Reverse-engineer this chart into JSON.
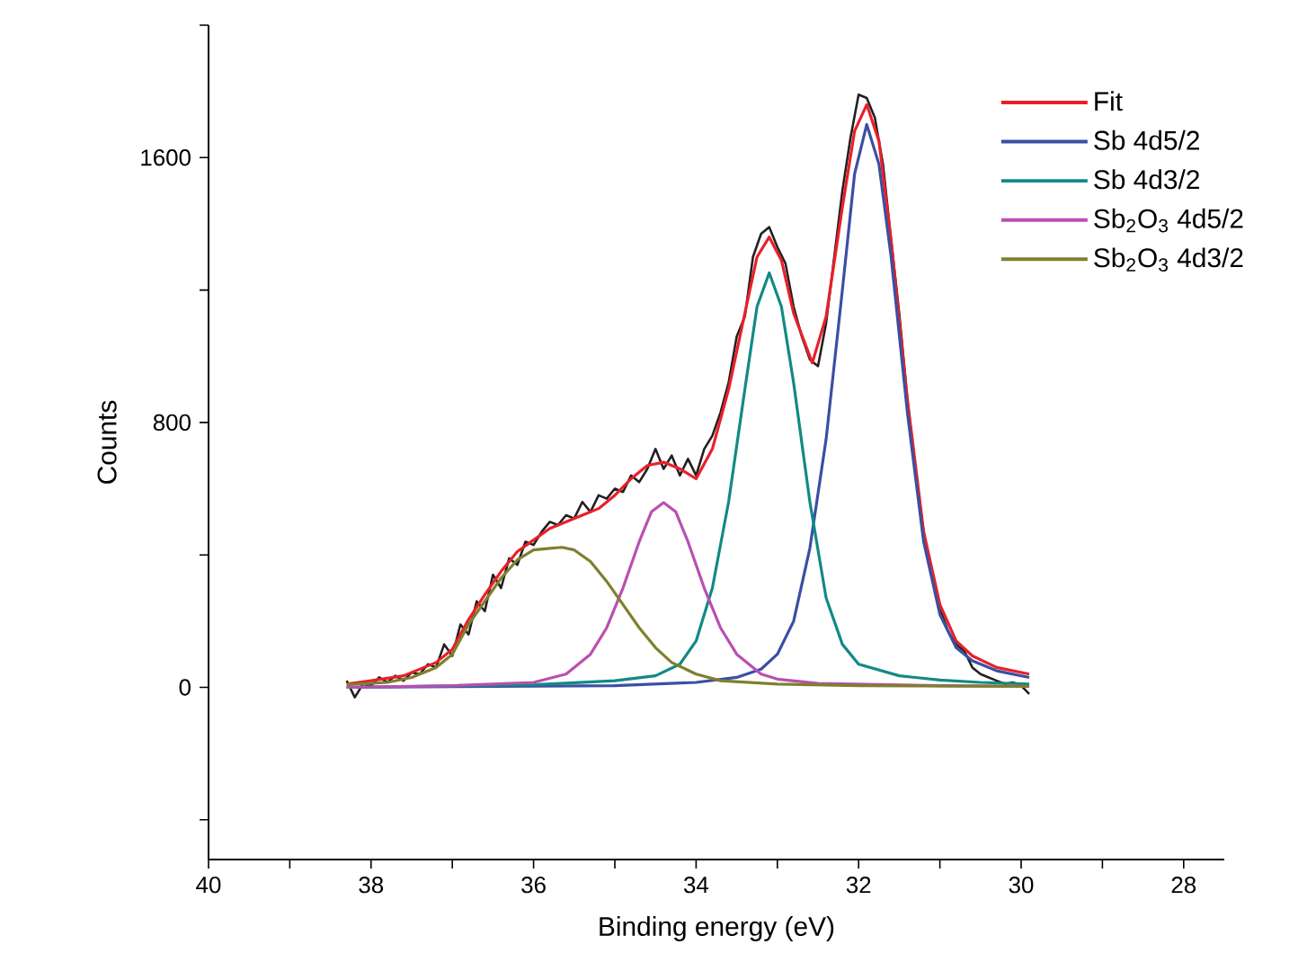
{
  "chart_data": {
    "type": "line",
    "xlabel": "Binding energy (eV)",
    "ylabel": "Counts",
    "xlim": [
      40,
      27.5
    ],
    "ylim": [
      -520,
      2000
    ],
    "xticks": [
      40,
      {
        "value": 39,
        "label": null
      },
      38,
      {
        "value": 37,
        "label": null
      },
      36,
      {
        "value": 35,
        "label": null
      },
      34,
      {
        "value": 33,
        "label": null
      },
      32,
      {
        "value": 31,
        "label": null
      },
      30,
      {
        "value": 29,
        "label": null
      },
      28
    ],
    "yticks": [
      {
        "value": -400,
        "label": null
      },
      0,
      {
        "value": 400,
        "label": null
      },
      800,
      {
        "value": 1200,
        "label": null
      },
      1600,
      {
        "value": 2000,
        "label": null
      }
    ],
    "legend": "top right",
    "marker": "none",
    "line_style": "solid",
    "series": [
      {
        "color": "#231f20",
        "x": [
          38.3,
          38.2,
          38.1,
          38.0,
          37.9,
          37.8,
          37.7,
          37.6,
          37.5,
          37.4,
          37.3,
          37.2,
          37.1,
          37.0,
          36.9,
          36.8,
          36.7,
          36.6,
          36.5,
          36.4,
          36.3,
          36.2,
          36.1,
          36.0,
          35.9,
          35.8,
          35.7,
          35.6,
          35.5,
          35.4,
          35.3,
          35.2,
          35.1,
          35.0,
          34.9,
          34.8,
          34.7,
          34.6,
          34.5,
          34.4,
          34.3,
          34.2,
          34.1,
          34.0,
          33.9,
          33.8,
          33.7,
          33.6,
          33.5,
          33.4,
          33.3,
          33.2,
          33.1,
          33.0,
          32.9,
          32.8,
          32.7,
          32.6,
          32.5,
          32.4,
          32.3,
          32.2,
          32.1,
          32.0,
          31.9,
          31.8,
          31.7,
          31.6,
          31.5,
          31.4,
          31.3,
          31.2,
          31.1,
          31.0,
          30.9,
          30.8,
          30.7,
          30.6,
          30.5,
          30.4,
          30.3,
          30.2,
          30.1,
          30.0,
          29.9
        ],
        "values": [
          20,
          -30,
          10,
          5,
          30,
          15,
          35,
          20,
          45,
          40,
          70,
          60,
          130,
          95,
          190,
          160,
          260,
          230,
          340,
          300,
          390,
          370,
          440,
          430,
          470,
          500,
          490,
          520,
          510,
          560,
          530,
          580,
          570,
          600,
          590,
          640,
          620,
          660,
          720,
          660,
          700,
          640,
          690,
          640,
          720,
          760,
          830,
          920,
          1060,
          1120,
          1300,
          1370,
          1390,
          1330,
          1280,
          1150,
          1060,
          990,
          970,
          1100,
          1300,
          1500,
          1660,
          1790,
          1780,
          1720,
          1580,
          1350,
          1130,
          870,
          650,
          470,
          340,
          240,
          170,
          130,
          110,
          60,
          40,
          30,
          20,
          10,
          15,
          5,
          -20
        ]
      },
      {
        "name": "Fit",
        "color": "#e8202a",
        "x": [
          38.3,
          38.0,
          37.6,
          37.2,
          37.0,
          36.8,
          36.6,
          36.4,
          36.2,
          36.0,
          35.8,
          35.6,
          35.4,
          35.2,
          35.0,
          34.8,
          34.6,
          34.4,
          34.2,
          34.0,
          33.8,
          33.6,
          33.4,
          33.25,
          33.1,
          32.95,
          32.8,
          32.57,
          32.4,
          32.2,
          32.05,
          31.9,
          31.75,
          31.6,
          31.4,
          31.2,
          31.0,
          30.8,
          30.6,
          30.3,
          29.9
        ],
        "values": [
          10,
          20,
          35,
          75,
          115,
          205,
          280,
          350,
          410,
          445,
          480,
          500,
          520,
          540,
          580,
          630,
          670,
          680,
          660,
          630,
          720,
          900,
          1130,
          1300,
          1360,
          1290,
          1130,
          980,
          1120,
          1450,
          1680,
          1760,
          1650,
          1350,
          870,
          470,
          250,
          140,
          95,
          60,
          40
        ]
      },
      {
        "name": "Sb 4d5/2",
        "color": "#3a4fa3",
        "x": [
          38.3,
          35.0,
          34.0,
          33.5,
          33.2,
          33.0,
          32.8,
          32.6,
          32.4,
          32.2,
          32.05,
          31.9,
          31.75,
          31.6,
          31.4,
          31.2,
          31.0,
          30.8,
          30.6,
          30.3,
          29.9
        ],
        "values": [
          0,
          5,
          15,
          30,
          55,
          100,
          200,
          420,
          750,
          1200,
          1550,
          1700,
          1580,
          1300,
          830,
          440,
          220,
          120,
          80,
          50,
          30
        ]
      },
      {
        "name": "Sb 4d3/2",
        "color": "#128a84",
        "x": [
          38.3,
          36.0,
          35.0,
          34.5,
          34.2,
          34.0,
          33.8,
          33.6,
          33.4,
          33.25,
          33.1,
          32.95,
          32.8,
          32.6,
          32.4,
          32.2,
          32.0,
          31.5,
          31.0,
          30.5,
          29.9
        ],
        "values": [
          0,
          8,
          20,
          35,
          70,
          140,
          300,
          560,
          900,
          1150,
          1252,
          1150,
          920,
          560,
          270,
          130,
          70,
          35,
          22,
          15,
          10
        ]
      },
      {
        "name": "Sb$_{2}$O$_{3}$ 4d5/2",
        "color": "#b94fb0",
        "x": [
          38.3,
          37.0,
          36.0,
          35.6,
          35.3,
          35.1,
          34.9,
          34.7,
          34.55,
          34.4,
          34.25,
          34.1,
          33.9,
          33.7,
          33.5,
          33.2,
          33.0,
          32.5,
          31.0,
          29.9
        ],
        "values": [
          0,
          5,
          15,
          40,
          100,
          180,
          300,
          440,
          530,
          558,
          530,
          440,
          300,
          180,
          100,
          40,
          25,
          12,
          5,
          3
        ]
      },
      {
        "name": "Sb$_{2}$O$_{3}$ 4d3/2",
        "color": "#7f7f2e",
        "x": [
          38.3,
          37.8,
          37.5,
          37.2,
          37.0,
          36.8,
          36.6,
          36.4,
          36.2,
          36.0,
          35.8,
          35.65,
          35.5,
          35.3,
          35.1,
          34.9,
          34.7,
          34.5,
          34.3,
          34.0,
          33.7,
          33.0,
          32.0,
          29.9
        ],
        "values": [
          8,
          15,
          30,
          60,
          100,
          190,
          260,
          330,
          385,
          415,
          420,
          423,
          415,
          380,
          320,
          250,
          180,
          120,
          75,
          40,
          20,
          10,
          5,
          3
        ]
      }
    ]
  }
}
